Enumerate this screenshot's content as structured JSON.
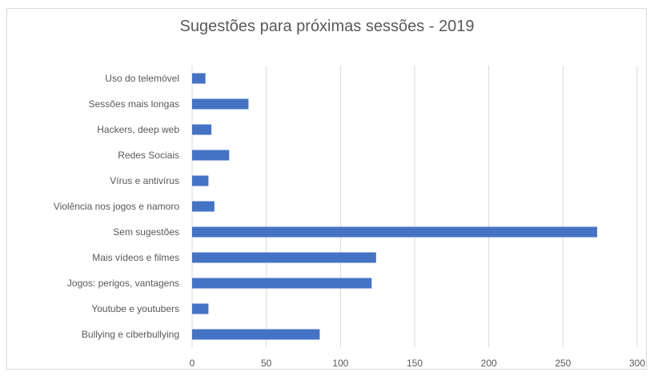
{
  "chart_data": {
    "type": "bar",
    "orientation": "horizontal",
    "title": "Sugestões para próximas sessões - 2019",
    "xlabel": "",
    "ylabel": "",
    "xlim": [
      0,
      300
    ],
    "x_ticks": [
      "0",
      "50",
      "100",
      "150",
      "200",
      "250",
      "300"
    ],
    "grid": true,
    "categories": [
      "Uso do telemóvel",
      "Sessões mais longas",
      "Hackers, deep web",
      "Redes Sociais",
      "Vírus e antivírus",
      "Violência nos jogos e namoro",
      "Sem sugestões",
      "Mais vídeos e filmes",
      "Jogos: perigos, vantagens",
      "Youtube e youtubers",
      "Bullying e ciberbullying"
    ],
    "values": [
      9,
      38,
      13,
      25,
      11,
      15,
      273,
      124,
      121,
      11,
      86
    ],
    "bar_color": "#4472c4",
    "grid_color": "#d9d9d9"
  }
}
